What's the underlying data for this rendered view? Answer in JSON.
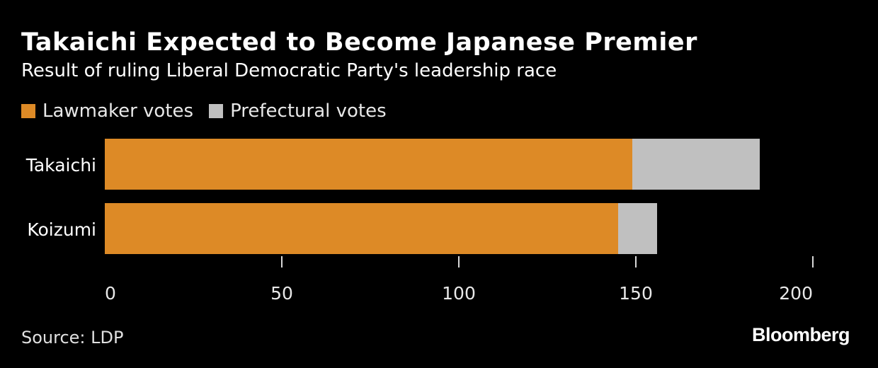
{
  "header": {
    "title": "Takaichi Expected to Become Japanese Premier",
    "subtitle": "Result of ruling Liberal Democratic Party's leadership race"
  },
  "legend": [
    {
      "label": "Lawmaker votes",
      "color": "#dd8a26"
    },
    {
      "label": "Prefectural votes",
      "color": "#c0c0c0"
    }
  ],
  "chart_data": {
    "type": "bar",
    "orientation": "horizontal",
    "stacked": true,
    "title": "Takaichi Expected to Become Japanese Premier",
    "subtitle": "Result of ruling Liberal Democratic Party's leadership race",
    "categories": [
      "Takaichi",
      "Koizumi"
    ],
    "series": [
      {
        "name": "Lawmaker votes",
        "color": "#dd8a26",
        "values": [
          149,
          145
        ]
      },
      {
        "name": "Prefectural votes",
        "color": "#c0c0c0",
        "values": [
          36,
          11
        ]
      }
    ],
    "xlim": [
      0,
      200
    ],
    "xticks": [
      0,
      50,
      100,
      150,
      200
    ],
    "xlabel": "",
    "ylabel": "",
    "grid": false,
    "legend_position": "top-left"
  },
  "footer": {
    "source": "Source: LDP",
    "brand": "Bloomberg"
  }
}
